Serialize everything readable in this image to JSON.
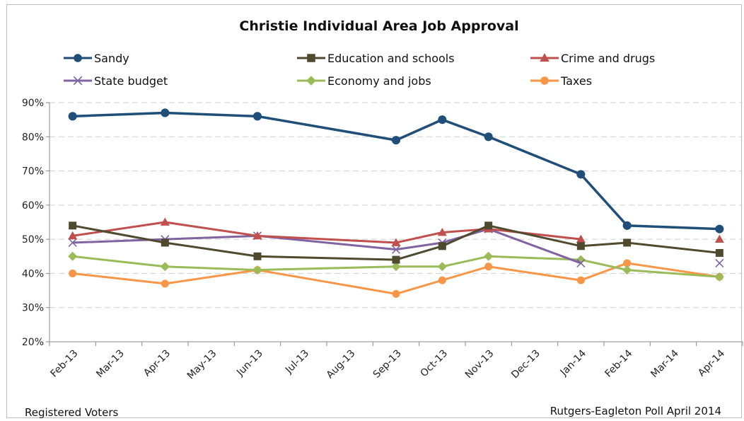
{
  "chart_data": {
    "type": "line",
    "title": "Christie Individual Area Job Approval",
    "xlabel": "",
    "ylabel": "",
    "categories": [
      "Feb-13",
      "Mar-13",
      "Apr-13",
      "May-13",
      "Jun-13",
      "Jul-13",
      "Aug-13",
      "Sep-13",
      "Oct-13",
      "Nov-13",
      "Dec-13",
      "Jan-14",
      "Feb-14",
      "Mar-14",
      "Apr-14"
    ],
    "ylim": [
      20,
      90
    ],
    "yticks": [
      20,
      30,
      40,
      50,
      60,
      70,
      80,
      90
    ],
    "ytick_labels": [
      "20%",
      "30%",
      "40%",
      "50%",
      "60%",
      "70%",
      "80%",
      "90%"
    ],
    "grid": true,
    "legend_position": "top",
    "series": [
      {
        "name": "Sandy",
        "color": "#1f4e79",
        "marker": "circle",
        "points": [
          [
            "Feb-13",
            86
          ],
          [
            "Apr-13",
            87
          ],
          [
            "Jun-13",
            86
          ],
          [
            "Sep-13",
            79
          ],
          [
            "Oct-13",
            85
          ],
          [
            "Nov-13",
            80
          ],
          [
            "Jan-14",
            69
          ],
          [
            "Feb-14",
            54
          ],
          [
            "Apr-14",
            53
          ]
        ]
      },
      {
        "name": "Education and schools",
        "color": "#4f4a2e",
        "marker": "square",
        "points": [
          [
            "Feb-13",
            54
          ],
          [
            "Apr-13",
            49
          ],
          [
            "Jun-13",
            45
          ],
          [
            "Sep-13",
            44
          ],
          [
            "Oct-13",
            48
          ],
          [
            "Nov-13",
            54
          ],
          [
            "Jan-14",
            48
          ],
          [
            "Feb-14",
            49
          ],
          [
            "Apr-14",
            46
          ]
        ]
      },
      {
        "name": "Crime and drugs",
        "color": "#c0504d",
        "marker": "triangle",
        "points": [
          [
            "Feb-13",
            51
          ],
          [
            "Apr-13",
            55
          ],
          [
            "Jun-13",
            51
          ],
          [
            "Sep-13",
            49
          ],
          [
            "Oct-13",
            52
          ],
          [
            "Nov-13",
            53
          ],
          [
            "Jan-14",
            50
          ],
          [
            "Apr-14",
            50
          ]
        ]
      },
      {
        "name": "State budget",
        "color": "#8064a2",
        "marker": "x",
        "points": [
          [
            "Feb-13",
            49
          ],
          [
            "Apr-13",
            50
          ],
          [
            "Jun-13",
            51
          ],
          [
            "Sep-13",
            47
          ],
          [
            "Oct-13",
            49
          ],
          [
            "Nov-13",
            53
          ],
          [
            "Jan-14",
            43
          ],
          [
            "Apr-14",
            43
          ]
        ]
      },
      {
        "name": "Economy and jobs",
        "color": "#9bbb59",
        "marker": "diamond",
        "points": [
          [
            "Feb-13",
            45
          ],
          [
            "Apr-13",
            42
          ],
          [
            "Jun-13",
            41
          ],
          [
            "Sep-13",
            42
          ],
          [
            "Oct-13",
            42
          ],
          [
            "Nov-13",
            45
          ],
          [
            "Jan-14",
            44
          ],
          [
            "Feb-14",
            41
          ],
          [
            "Apr-14",
            39
          ]
        ]
      },
      {
        "name": "Taxes",
        "color": "#f79646",
        "marker": "circle",
        "points": [
          [
            "Feb-13",
            40
          ],
          [
            "Apr-13",
            37
          ],
          [
            "Jun-13",
            41
          ],
          [
            "Sep-13",
            34
          ],
          [
            "Oct-13",
            38
          ],
          [
            "Nov-13",
            42
          ],
          [
            "Jan-14",
            38
          ],
          [
            "Feb-14",
            43
          ],
          [
            "Apr-14",
            39
          ]
        ]
      }
    ],
    "footer_left": "Registered Voters",
    "footer_right": "Rutgers-Eagleton Poll April 2014"
  }
}
